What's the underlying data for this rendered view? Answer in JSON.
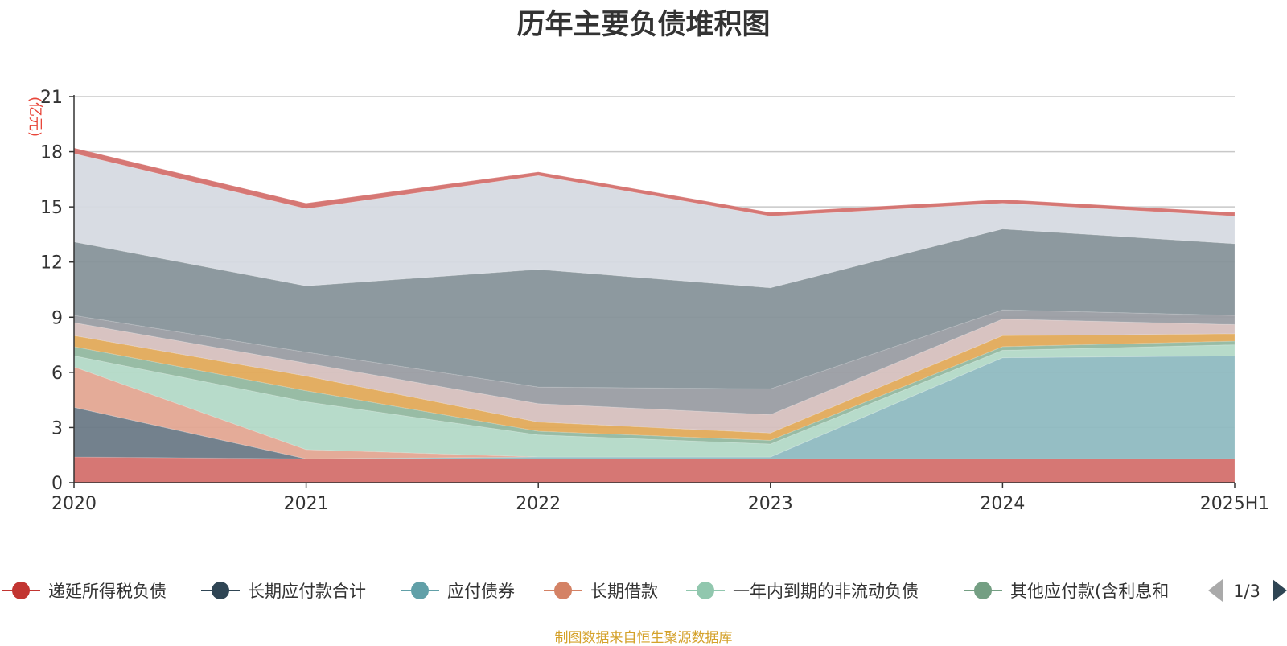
{
  "chart_data": {
    "type": "area",
    "title": "历年主要负债堆积图",
    "ylabel": "(亿元)",
    "xlabel": "",
    "x": [
      "2020",
      "2021",
      "2022",
      "2023",
      "2024",
      "2025H1"
    ],
    "ylim": [
      0,
      21
    ],
    "yticks": [
      0,
      3,
      6,
      9,
      12,
      15,
      18,
      21
    ],
    "grid": true,
    "stacked": true,
    "note": "制图数据来自恒生聚源数据库",
    "series_colors_note": "bands listed bottom to top",
    "bands": [
      {
        "color": "#d4706d",
        "values": [
          1.4,
          1.3,
          1.3,
          1.3,
          1.3,
          1.3
        ]
      },
      {
        "color": "#6b7a87",
        "values": [
          2.7,
          0.0,
          0.0,
          0.0,
          0.0,
          0.0
        ]
      },
      {
        "color": "#8fbbc1",
        "values": [
          0.0,
          0.0,
          0.1,
          0.1,
          5.5,
          5.6
        ]
      },
      {
        "color": "#e3a792",
        "values": [
          2.2,
          0.5,
          0.0,
          0.0,
          0.0,
          0.0
        ]
      },
      {
        "color": "#b3d9c7",
        "values": [
          0.6,
          2.6,
          1.2,
          0.7,
          0.4,
          0.6
        ]
      },
      {
        "color": "#92b8a0",
        "values": [
          0.5,
          0.6,
          0.2,
          0.2,
          0.2,
          0.2
        ]
      },
      {
        "color": "#e2aa5a",
        "values": [
          0.6,
          0.8,
          0.5,
          0.4,
          0.6,
          0.4
        ]
      },
      {
        "color": "#d6c0be",
        "values": [
          0.7,
          0.7,
          1.0,
          1.0,
          0.9,
          0.5
        ]
      },
      {
        "color": "#9a9da3",
        "values": [
          0.4,
          0.6,
          0.9,
          1.4,
          0.5,
          0.5
        ]
      },
      {
        "color": "#87939a",
        "values": [
          4.0,
          3.6,
          6.4,
          5.5,
          4.4,
          3.9
        ]
      },
      {
        "color": "#d6dae1",
        "values": [
          4.8,
          4.2,
          5.1,
          3.9,
          1.4,
          1.5
        ]
      },
      {
        "color": "#d4706d",
        "values": [
          0.3,
          0.3,
          0.2,
          0.2,
          0.2,
          0.2
        ]
      }
    ],
    "legend": {
      "placement": "bottom",
      "page": "1/3",
      "items": [
        {
          "name": "递延所得税负债",
          "color": "#c23531"
        },
        {
          "name": "长期应付款合计",
          "color": "#2f4554"
        },
        {
          "name": "应付债券",
          "color": "#61a0a8"
        },
        {
          "name": "长期借款",
          "color": "#d48265"
        },
        {
          "name": "一年内到期的非流动负债",
          "color": "#91c7ae"
        },
        {
          "name": "其他应付款(含利息和",
          "color": "#749f83"
        }
      ]
    }
  }
}
